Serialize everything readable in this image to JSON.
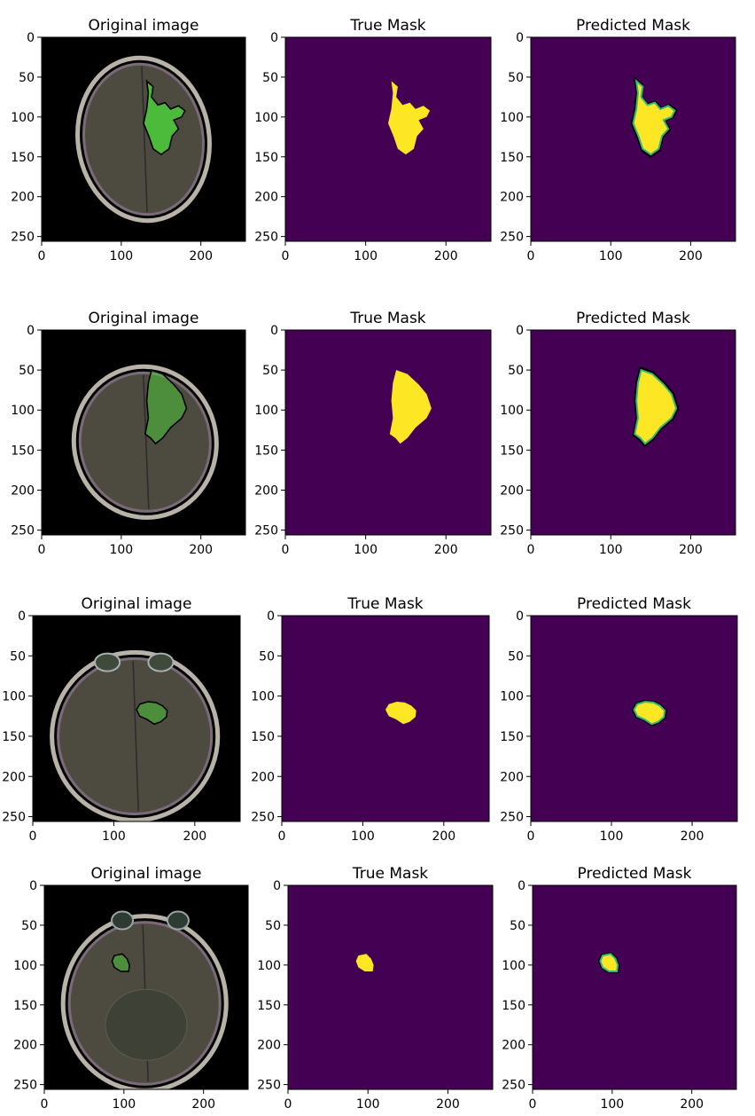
{
  "figure": {
    "panel_titles": [
      "Original image",
      "True Mask",
      "Predicted Mask"
    ]
  },
  "colors": {
    "mask_background": "#440154",
    "mask_foreground": "#fde725",
    "mask_edge": "#35b779",
    "tumor_overlay": "#4cc63a",
    "contour": "#000000",
    "scan_background": "#000000",
    "brain_tissue": "#4d4a3f",
    "skull": "#b9b2a8"
  },
  "chart_data": [
    {
      "type": "image",
      "row": 1,
      "titles": [
        "Original image",
        "True Mask",
        "Predicted Mask"
      ],
      "xticks": [
        0,
        100,
        200
      ],
      "yticks": [
        0,
        50,
        100,
        150,
        200,
        250
      ],
      "xlim": [
        0,
        256
      ],
      "ylim": [
        256,
        0
      ],
      "tumor_region": {
        "x": [
          125,
          185
        ],
        "y": [
          55,
          145
        ]
      }
    },
    {
      "type": "image",
      "row": 2,
      "titles": [
        "Original image",
        "True Mask",
        "Predicted Mask"
      ],
      "xticks": [
        0,
        100,
        200
      ],
      "yticks": [
        0,
        50,
        100,
        150,
        200,
        250
      ],
      "xlim": [
        0,
        256
      ],
      "ylim": [
        256,
        0
      ],
      "tumor_region": {
        "x": [
          130,
          182
        ],
        "y": [
          50,
          142
        ]
      }
    },
    {
      "type": "image",
      "row": 3,
      "titles": [
        "Original image",
        "True Mask",
        "Predicted Mask"
      ],
      "xticks": [
        0,
        100,
        200
      ],
      "yticks": [
        0,
        50,
        100,
        150,
        200,
        250
      ],
      "xlim": [
        0,
        256
      ],
      "ylim": [
        256,
        0
      ],
      "tumor_region": {
        "x": [
          128,
          167
        ],
        "y": [
          107,
          135
        ]
      }
    },
    {
      "type": "image",
      "row": 4,
      "titles": [
        "Original image",
        "True Mask",
        "Predicted Mask"
      ],
      "xticks": [
        0,
        100,
        200
      ],
      "yticks": [
        0,
        50,
        100,
        150,
        200,
        250
      ],
      "xlim": [
        0,
        256
      ],
      "ylim": [
        256,
        0
      ],
      "tumor_region": {
        "x": [
          84,
          108
        ],
        "y": [
          86,
          108
        ]
      }
    }
  ]
}
